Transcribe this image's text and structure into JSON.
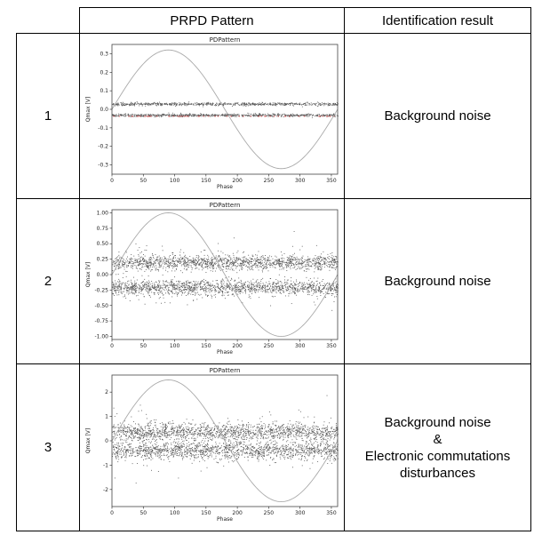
{
  "table": {
    "headers": [
      "",
      "PRPD Pattern",
      "Identification result"
    ],
    "rows": [
      {
        "number": "1",
        "result_lines": [
          "Background noise"
        ]
      },
      {
        "number": "2",
        "result_lines": [
          "Background noise"
        ]
      },
      {
        "number": "3",
        "result_lines": [
          "Background noise",
          "&",
          "Electronic commutations",
          "disturbances"
        ]
      }
    ]
  },
  "chart_data": [
    {
      "type": "scatter",
      "title": "PDPattern",
      "xlabel": "Phase",
      "ylabel": "Qmax [V]",
      "xlim": [
        0,
        360
      ],
      "ylim": [
        -0.35,
        0.35
      ],
      "xticks": [
        "0",
        "50",
        "100",
        "150",
        "200",
        "250",
        "300",
        "350"
      ],
      "yticks": [
        "0.3",
        "0.2",
        "0.1",
        "0.0",
        "-0.1",
        "-0.2",
        "-0.3"
      ],
      "sine_amplitude": 0.32,
      "series": [
        {
          "band_center": 0.03,
          "band_spread": 0.004
        },
        {
          "band_center": -0.03,
          "band_spread": 0.004
        }
      ],
      "colors": {
        "sine": "#aaaaaa",
        "points": "#555555",
        "accent": "#cc3333",
        "frame": "#444444"
      }
    },
    {
      "type": "scatter",
      "title": "PDPattern",
      "xlabel": "Phase",
      "ylabel": "Qmax [V]",
      "xlim": [
        0,
        360
      ],
      "ylim": [
        -1.05,
        1.05
      ],
      "xticks": [
        "0",
        "50",
        "100",
        "150",
        "200",
        "250",
        "300",
        "350"
      ],
      "yticks": [
        "1.00",
        "0.75",
        "0.50",
        "0.25",
        "0.00",
        "-0.25",
        "-0.50",
        "-0.75",
        "-1.00"
      ],
      "sine_amplitude": 1.0,
      "series": [
        {
          "band_center": 0.2,
          "band_spread": 0.06
        },
        {
          "band_center": -0.2,
          "band_spread": 0.06
        }
      ],
      "colors": {
        "sine": "#aaaaaa",
        "points": "#555555",
        "frame": "#444444"
      }
    },
    {
      "type": "scatter",
      "title": "PDPattern",
      "xlabel": "Phase",
      "ylabel": "Qmax [V]",
      "xlim": [
        0,
        360
      ],
      "ylim": [
        -2.7,
        2.7
      ],
      "xticks": [
        "0",
        "50",
        "100",
        "150",
        "200",
        "250",
        "300",
        "350"
      ],
      "yticks": [
        "2",
        "1",
        "0",
        "-1",
        "-2"
      ],
      "sine_amplitude": 2.5,
      "series": [
        {
          "band_center": 0.38,
          "band_spread": 0.18
        },
        {
          "band_center": -0.38,
          "band_spread": 0.18
        }
      ],
      "colors": {
        "sine": "#aaaaaa",
        "points": "#555555",
        "frame": "#444444"
      }
    }
  ]
}
